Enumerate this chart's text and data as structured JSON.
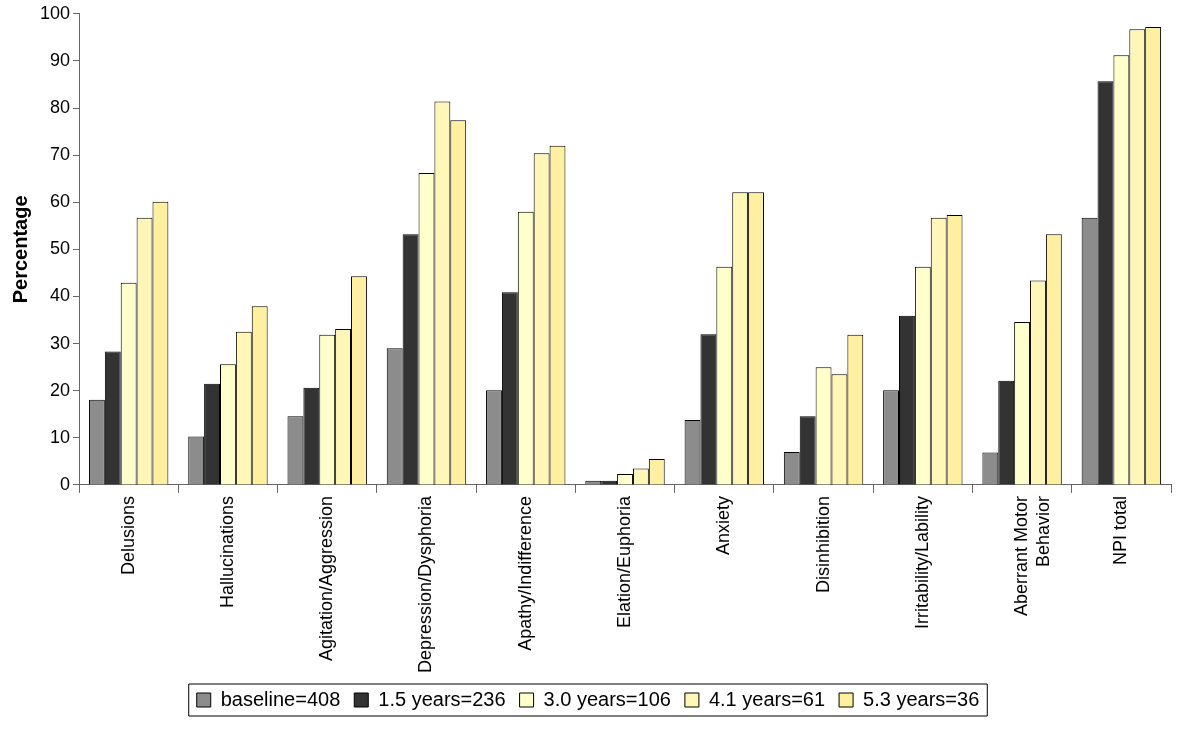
{
  "chart_data": {
    "type": "bar",
    "ylabel": "Percentage",
    "categories": [
      "Delusions",
      "Hallucinations",
      "Agitation/Aggression",
      "Depression/Dysphoria",
      "Apathy/Indifference",
      "Elation/Euphoria",
      "Anxiety",
      "Disinhibition",
      "Irritability/Lability",
      "Aberrant Motor Behavior",
      "NPI total"
    ],
    "series": [
      {
        "name": "baseline=408",
        "color": "#8c8c8c",
        "values": [
          18.1,
          10.3,
          14.6,
          29.0,
          20.1,
          0.9,
          13.8,
          7.0,
          20.1,
          6.9,
          56.7
        ]
      },
      {
        "name": "1.5 years=236",
        "color": "#333333",
        "values": [
          28.3,
          21.5,
          20.6,
          53.2,
          40.9,
          0.9,
          32.0,
          14.6,
          35.9,
          22.1,
          85.7
        ]
      },
      {
        "name": "3.0 years=106",
        "color": "#ffffcc",
        "values": [
          42.9,
          25.6,
          31.9,
          66.2,
          58.0,
          2.3,
          46.3,
          25.0,
          46.3,
          34.6,
          91.2
        ]
      },
      {
        "name": "4.1 years=61",
        "color": "#fff6b8",
        "values": [
          56.7,
          32.5,
          33.1,
          81.4,
          70.4,
          3.5,
          62.1,
          23.5,
          56.7,
          43.4,
          96.7
        ]
      },
      {
        "name": "5.3 years=36",
        "color": "#ffefa0",
        "values": [
          60.1,
          37.9,
          44.3,
          77.4,
          72.0,
          5.5,
          62.1,
          31.9,
          57.3,
          53.2,
          97.2
        ]
      }
    ],
    "ylim": [
      0,
      100
    ],
    "yticks": [
      0,
      10,
      20,
      30,
      40,
      50,
      60,
      70,
      80,
      90,
      100
    ],
    "grid": false,
    "legend": "bottom"
  }
}
